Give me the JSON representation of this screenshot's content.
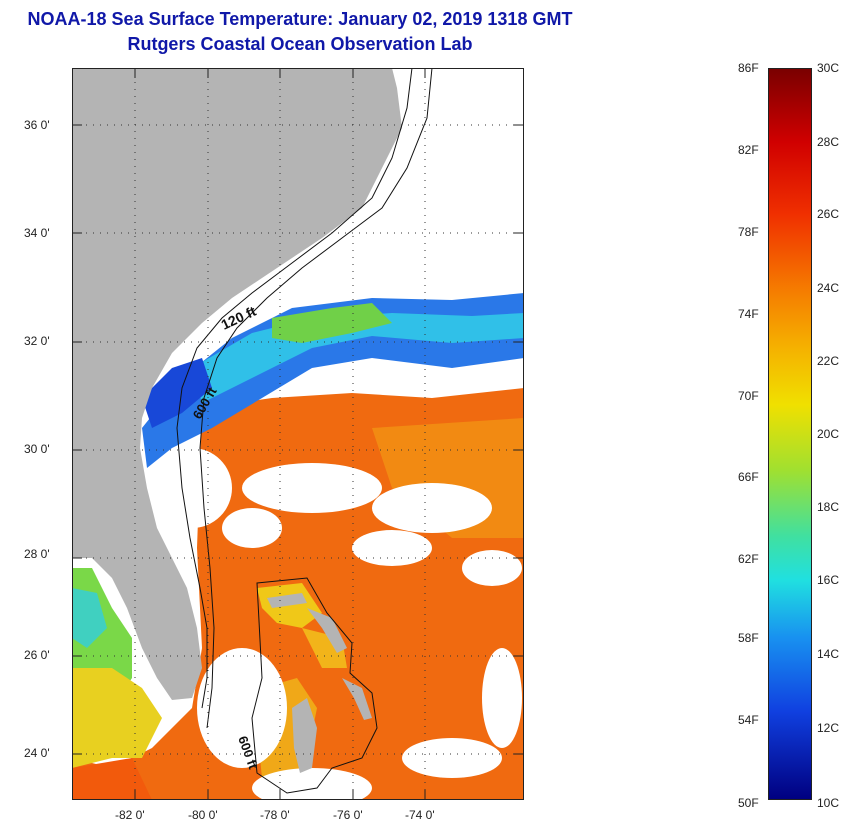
{
  "header": {
    "title": "NOAA-18 Sea Surface Temperature:  January 02, 2019 1318 GMT",
    "subtitle": "Rutgers Coastal Ocean Observation Lab"
  },
  "map": {
    "lat_labels": [
      "36 0'",
      "34 0'",
      "32 0'",
      "30 0'",
      "28 0'",
      "26 0'",
      "24 0'"
    ],
    "lon_labels": [
      "-82 0'",
      "-80 0'",
      "-78 0'",
      "-76 0'",
      "-74 0'"
    ],
    "contour_labels": [
      "120 ft",
      "600 ft",
      "600 ft"
    ],
    "colors": {
      "land": "#b4b4b4",
      "cloud": "#ffffff",
      "warm": "#f06a10",
      "cold": "#1040e0"
    }
  },
  "colorbar": {
    "fahrenheit": [
      "86F",
      "82F",
      "78F",
      "74F",
      "70F",
      "66F",
      "62F",
      "58F",
      "54F",
      "50F"
    ],
    "celsius": [
      "30C",
      "28C",
      "26C",
      "24C",
      "22C",
      "20C",
      "18C",
      "16C",
      "14C",
      "12C",
      "10C"
    ]
  }
}
